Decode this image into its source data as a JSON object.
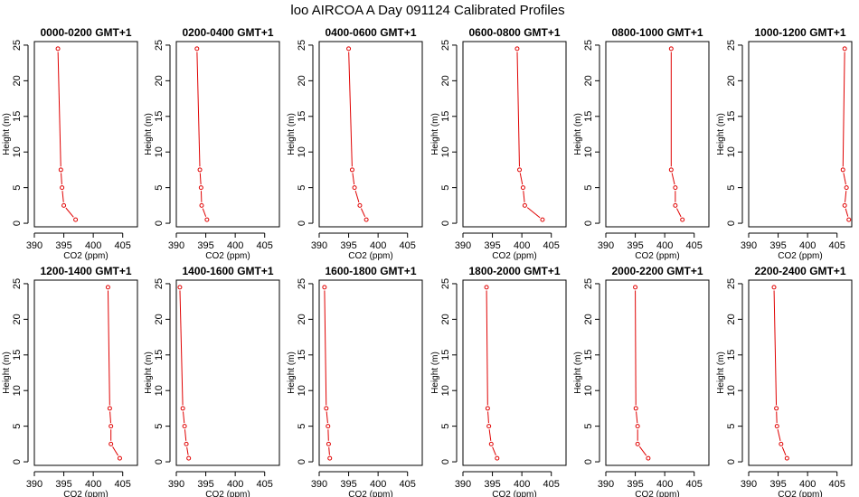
{
  "figure_title": "loo AIRCOA A  Day 091124  Calibrated Profiles",
  "colors": {
    "series": "#e00000",
    "axes": "#000000"
  },
  "chart_data": [
    {
      "type": "line",
      "title": "0000-0200 GMT+1",
      "xlabel": "CO2 (ppm)",
      "ylabel": "Height (m)",
      "xlim": [
        390,
        407.5
      ],
      "ylim": [
        -0.5,
        25.5
      ],
      "xticks": [
        390,
        395,
        400,
        405
      ],
      "yticks": [
        0,
        5,
        10,
        15,
        20,
        25
      ],
      "x": [
        397.0,
        395.0,
        394.7,
        394.5,
        394.0
      ],
      "y": [
        0.5,
        2.5,
        5,
        7.5,
        24.5
      ]
    },
    {
      "type": "line",
      "title": "0200-0400 GMT+1",
      "xlabel": "CO2 (ppm)",
      "ylabel": "Height (m)",
      "xlim": [
        390,
        407.5
      ],
      "ylim": [
        -0.5,
        25.5
      ],
      "xticks": [
        390,
        395,
        400,
        405
      ],
      "yticks": [
        0,
        5,
        10,
        15,
        20,
        25
      ],
      "x": [
        395.2,
        394.3,
        394.2,
        394.0,
        393.5
      ],
      "y": [
        0.5,
        2.5,
        5,
        7.5,
        24.5
      ]
    },
    {
      "type": "line",
      "title": "0400-0600 GMT+1",
      "xlabel": "CO2 (ppm)",
      "ylabel": "Height (m)",
      "xlim": [
        390,
        407.5
      ],
      "ylim": [
        -0.5,
        25.5
      ],
      "xticks": [
        390,
        395,
        400,
        405
      ],
      "yticks": [
        0,
        5,
        10,
        15,
        20,
        25
      ],
      "x": [
        398.0,
        396.9,
        396.0,
        395.6,
        395.0
      ],
      "y": [
        0.5,
        2.5,
        5,
        7.5,
        24.5
      ]
    },
    {
      "type": "line",
      "title": "0600-0800 GMT+1",
      "xlabel": "CO2 (ppm)",
      "ylabel": "Height (m)",
      "xlim": [
        390,
        407.5
      ],
      "ylim": [
        -0.5,
        25.5
      ],
      "xticks": [
        390,
        395,
        400,
        405
      ],
      "yticks": [
        0,
        5,
        10,
        15,
        20,
        25
      ],
      "x": [
        403.5,
        400.5,
        400.2,
        399.6,
        399.2
      ],
      "y": [
        0.5,
        2.5,
        5,
        7.5,
        24.5
      ]
    },
    {
      "type": "line",
      "title": "0800-1000 GMT+1",
      "xlabel": "CO2 (ppm)",
      "ylabel": "Height (m)",
      "xlim": [
        390,
        407.5
      ],
      "ylim": [
        -0.5,
        25.5
      ],
      "xticks": [
        390,
        395,
        400,
        405
      ],
      "yticks": [
        0,
        5,
        10,
        15,
        20,
        25
      ],
      "x": [
        403.0,
        401.8,
        401.8,
        401.1,
        401.1
      ],
      "y": [
        0.5,
        2.5,
        5,
        7.5,
        24.5
      ]
    },
    {
      "type": "line",
      "title": "1000-1200 GMT+1",
      "xlabel": "CO2 (ppm)",
      "ylabel": "Height (m)",
      "xlim": [
        390,
        407.5
      ],
      "ylim": [
        -0.5,
        25.5
      ],
      "xticks": [
        390,
        395,
        400,
        405
      ],
      "yticks": [
        0,
        5,
        10,
        15,
        20,
        25
      ],
      "x": [
        407.0,
        406.3,
        406.6,
        406.0,
        406.3
      ],
      "y": [
        0.5,
        2.5,
        5,
        7.5,
        24.5
      ]
    },
    {
      "type": "line",
      "title": "1200-1400 GMT+1",
      "xlabel": "CO2 (ppm)",
      "ylabel": "Height (m)",
      "xlim": [
        390,
        407.5
      ],
      "ylim": [
        -0.5,
        25.5
      ],
      "xticks": [
        390,
        395,
        400,
        405
      ],
      "yticks": [
        0,
        5,
        10,
        15,
        20,
        25
      ],
      "x": [
        404.5,
        403.0,
        403.0,
        402.8,
        402.5
      ],
      "y": [
        0.5,
        2.5,
        5,
        7.5,
        24.5
      ]
    },
    {
      "type": "line",
      "title": "1400-1600 GMT+1",
      "xlabel": "CO2 (ppm)",
      "ylabel": "Height (m)",
      "xlim": [
        390,
        407.5
      ],
      "ylim": [
        -0.5,
        25.5
      ],
      "xticks": [
        390,
        395,
        400,
        405
      ],
      "yticks": [
        0,
        5,
        10,
        15,
        20,
        25
      ],
      "x": [
        392.1,
        391.7,
        391.4,
        391.1,
        390.6
      ],
      "y": [
        0.5,
        2.5,
        5,
        7.5,
        24.5
      ]
    },
    {
      "type": "line",
      "title": "1600-1800 GMT+1",
      "xlabel": "CO2 (ppm)",
      "ylabel": "Height (m)",
      "xlim": [
        390,
        407.5
      ],
      "ylim": [
        -0.5,
        25.5
      ],
      "xticks": [
        390,
        395,
        400,
        405
      ],
      "yticks": [
        0,
        5,
        10,
        15,
        20,
        25
      ],
      "x": [
        391.8,
        391.6,
        391.5,
        391.2,
        390.9
      ],
      "y": [
        0.5,
        2.5,
        5,
        7.5,
        24.5
      ]
    },
    {
      "type": "line",
      "title": "1800-2000 GMT+1",
      "xlabel": "CO2 (ppm)",
      "ylabel": "Height (m)",
      "xlim": [
        390,
        407.5
      ],
      "ylim": [
        -0.5,
        25.5
      ],
      "xticks": [
        390,
        395,
        400,
        405
      ],
      "yticks": [
        0,
        5,
        10,
        15,
        20,
        25
      ],
      "x": [
        395.8,
        394.8,
        394.4,
        394.2,
        394.0
      ],
      "y": [
        0.5,
        2.5,
        5,
        7.5,
        24.5
      ]
    },
    {
      "type": "line",
      "title": "2000-2200 GMT+1",
      "xlabel": "CO2 (ppm)",
      "ylabel": "Height (m)",
      "xlim": [
        390,
        407.5
      ],
      "ylim": [
        -0.5,
        25.5
      ],
      "xticks": [
        390,
        395,
        400,
        405
      ],
      "yticks": [
        0,
        5,
        10,
        15,
        20,
        25
      ],
      "x": [
        397.2,
        395.4,
        395.4,
        395.1,
        395.0
      ],
      "y": [
        0.5,
        2.5,
        5,
        7.5,
        24.5
      ]
    },
    {
      "type": "line",
      "title": "2200-2400 GMT+1",
      "xlabel": "CO2 (ppm)",
      "ylabel": "Height (m)",
      "xlim": [
        390,
        407.5
      ],
      "ylim": [
        -0.5,
        25.5
      ],
      "xticks": [
        390,
        395,
        400,
        405
      ],
      "yticks": [
        0,
        5,
        10,
        15,
        20,
        25
      ],
      "x": [
        396.5,
        395.5,
        394.8,
        394.7,
        394.3
      ],
      "y": [
        0.5,
        2.5,
        5,
        7.5,
        24.5
      ]
    }
  ]
}
